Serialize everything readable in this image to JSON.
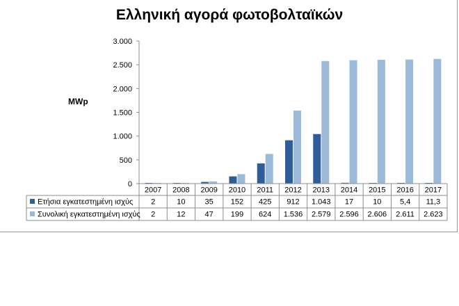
{
  "chart_data": {
    "type": "bar",
    "title": "Ελληνική αγορά φωτοβολταϊκών",
    "ylabel": "MWp",
    "ylim": [
      0,
      3000
    ],
    "yticks": [
      0,
      500,
      1000,
      1500,
      2000,
      2500,
      3000
    ],
    "ytick_labels": [
      "0",
      "500",
      "1.000",
      "1.500",
      "2.000",
      "2.500",
      "3.000"
    ],
    "categories": [
      "2007",
      "2008",
      "2009",
      "2010",
      "2011",
      "2012",
      "2013",
      "2014",
      "2015",
      "2016",
      "2017"
    ],
    "series": [
      {
        "name": "Ετήσια εγκατεστημένη ισχύς",
        "color": "#2e5d9a",
        "values": [
          2,
          10,
          35,
          152,
          425,
          912,
          1043,
          17,
          10,
          5.4,
          11.3
        ],
        "labels": [
          "2",
          "10",
          "35",
          "152",
          "425",
          "912",
          "1.043",
          "17",
          "10",
          "5,4",
          "11,3"
        ]
      },
      {
        "name": "Συνολική εγκατεστημένη ισχύς",
        "color": "#9bbad9",
        "values": [
          2,
          12,
          47,
          199,
          624,
          1536,
          2579,
          2596,
          2606,
          2611,
          2623
        ],
        "labels": [
          "2",
          "12",
          "47",
          "199",
          "624",
          "1.536",
          "2.579",
          "2.596",
          "2.606",
          "2.611",
          "2.623"
        ]
      }
    ],
    "grid": false,
    "legend": "data-table"
  }
}
